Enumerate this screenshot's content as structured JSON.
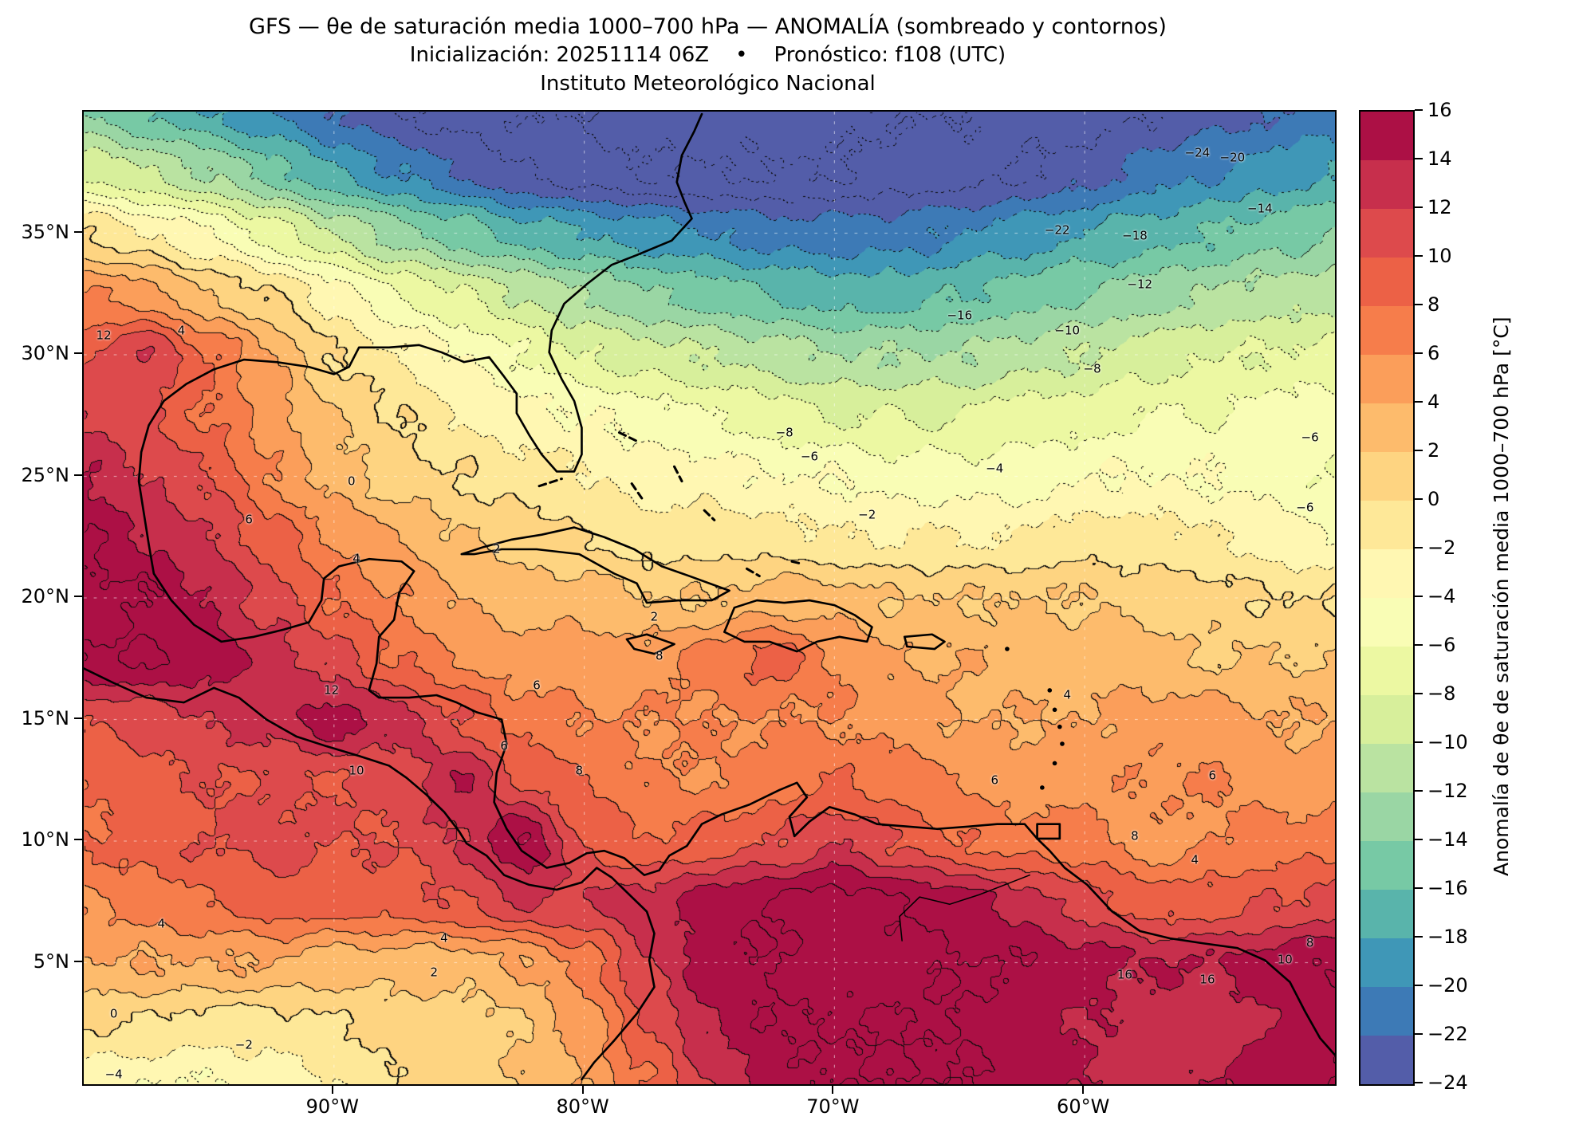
{
  "header": {
    "title_line1": "GFS — θe de saturación media 1000–700 hPa — ANOMALÍA (sombreado y contornos)",
    "title_line2": "Inicialización: 20251114 06Z    •    Pronóstico: f108 (UTC)",
    "title_line3": "Instituto Meteorológico Nacional"
  },
  "axes": {
    "lat_ticks": [
      {
        "label": "35°N",
        "value": 35
      },
      {
        "label": "30°N",
        "value": 30
      },
      {
        "label": "25°N",
        "value": 25
      },
      {
        "label": "20°N",
        "value": 20
      },
      {
        "label": "15°N",
        "value": 15
      },
      {
        "label": "10°N",
        "value": 10
      },
      {
        "label": "5°N",
        "value": 5
      }
    ],
    "lon_ticks": [
      {
        "label": "90°W",
        "value": -90
      },
      {
        "label": "80°W",
        "value": -80
      },
      {
        "label": "70°W",
        "value": -70
      },
      {
        "label": "60°W",
        "value": -60
      }
    ]
  },
  "colorbar": {
    "label": "Anomalía de θe de saturación media 1000–700 hPa [°C]",
    "ticks": [
      {
        "label": "16",
        "value": 16
      },
      {
        "label": "14",
        "value": 14
      },
      {
        "label": "12",
        "value": 12
      },
      {
        "label": "10",
        "value": 10
      },
      {
        "label": "8",
        "value": 8
      },
      {
        "label": "6",
        "value": 6
      },
      {
        "label": "4",
        "value": 4
      },
      {
        "label": "2",
        "value": 2
      },
      {
        "label": "0",
        "value": 0
      },
      {
        "label": "−2",
        "value": -2
      },
      {
        "label": "−4",
        "value": -4
      },
      {
        "label": "−6",
        "value": -6
      },
      {
        "label": "−8",
        "value": -8
      },
      {
        "label": "−10",
        "value": -10
      },
      {
        "label": "−12",
        "value": -12
      },
      {
        "label": "−14",
        "value": -14
      },
      {
        "label": "−16",
        "value": -16
      },
      {
        "label": "−18",
        "value": -18
      },
      {
        "label": "−20",
        "value": -20
      },
      {
        "label": "−22",
        "value": -22
      },
      {
        "label": "−24",
        "value": -24
      }
    ],
    "band_colors_low_to_high": [
      "#535da9",
      "#3d7ab6",
      "#3f97b7",
      "#59b4ab",
      "#77c9a5",
      "#9ad6a4",
      "#bae3a1",
      "#d7ef9b",
      "#ecf8a2",
      "#f9fdb5",
      "#fff7b2",
      "#fee898",
      "#fed481",
      "#fdbb6c",
      "#fb9e5a",
      "#f67d4b",
      "#ec6146",
      "#dd4a4c",
      "#c72f4c",
      "#ac1045"
    ],
    "line_color": "#000000"
  },
  "chart_data": {
    "type": "heatmap",
    "title": "GFS — θe de saturación media 1000–700 hPa — ANOMALÍA (sombreado y contornos)",
    "units": "°C",
    "level_min": -24,
    "level_max": 16,
    "level_step": 2,
    "lon_range": [
      -100,
      -50
    ],
    "lat_range": [
      0,
      40
    ],
    "grid_lon_start": -100,
    "grid_lon_step": 2.5,
    "grid_lat_start": 40,
    "grid_lat_step": -2.5,
    "values_rows_lat_desc": [
      [
        -14,
        -16,
        -18,
        -20,
        -22,
        -24,
        -25,
        -26,
        -26,
        -27,
        -27,
        -27,
        -27,
        -26,
        -26,
        -25,
        -25,
        -24,
        -23,
        -22,
        -21
      ],
      [
        -8,
        -10,
        -12,
        -15,
        -18,
        -20,
        -22,
        -24,
        -25,
        -26,
        -26,
        -26,
        -26,
        -25,
        -25,
        -24,
        -23,
        -21,
        -20,
        -19,
        -18
      ],
      [
        0,
        -2,
        -4,
        -7,
        -10,
        -13,
        -15,
        -17,
        -18,
        -19,
        -20,
        -21,
        -21,
        -21,
        -20,
        -19,
        -18,
        -17,
        -16,
        -15,
        -14
      ],
      [
        6,
        5,
        2,
        0,
        -3,
        -6,
        -8,
        -10,
        -12,
        -14,
        -15,
        -16,
        -17,
        -17,
        -16,
        -15,
        -14,
        -13,
        -12,
        -11,
        -11
      ],
      [
        10,
        12,
        8,
        4,
        0,
        -2,
        -4,
        -6,
        -8,
        -9,
        -10,
        -11,
        -12,
        -12,
        -12,
        -11,
        -10,
        -9,
        -8,
        -8,
        -7
      ],
      [
        12,
        10,
        8,
        5,
        2,
        0,
        -2,
        -3,
        -4,
        -5,
        -6,
        -7,
        -8,
        -8,
        -8,
        -7,
        -7,
        -6,
        -6,
        -5,
        -5
      ],
      [
        14,
        12,
        10,
        6,
        3,
        1,
        0,
        -1,
        -2,
        -3,
        -3,
        -4,
        -4,
        -5,
        -5,
        -5,
        -4,
        -4,
        -4,
        -5,
        -6
      ],
      [
        16,
        14,
        12,
        9,
        6,
        4,
        2,
        1,
        0,
        -1,
        -1,
        -1,
        -2,
        -2,
        -2,
        -2,
        -1,
        -1,
        -2,
        -3,
        -4
      ],
      [
        17,
        16,
        14,
        11,
        8,
        6,
        4,
        3,
        3,
        2,
        2,
        3,
        3,
        2,
        2,
        2,
        2,
        1,
        1,
        0,
        0
      ],
      [
        16,
        16,
        15,
        13,
        11,
        8,
        6,
        5,
        5,
        5,
        7,
        9,
        6,
        4,
        4,
        3,
        3,
        3,
        2,
        2,
        2
      ],
      [
        10,
        11,
        12,
        13,
        15,
        13,
        10,
        7,
        6,
        6,
        6,
        6,
        6,
        5,
        4,
        4,
        4,
        5,
        5,
        4,
        4
      ],
      [
        8,
        9,
        10,
        10,
        10,
        11,
        14,
        10,
        8,
        6,
        6,
        7,
        8,
        7,
        6,
        5,
        5,
        6,
        6,
        5,
        5
      ],
      [
        8,
        9,
        10,
        11,
        10,
        10,
        12,
        16,
        10,
        8,
        9,
        10,
        12,
        10,
        8,
        7,
        7,
        5,
        6,
        7,
        7
      ],
      [
        6,
        7,
        8,
        9,
        9,
        9,
        10,
        12,
        12,
        13,
        15,
        16,
        17,
        16,
        15,
        13,
        11,
        9,
        9,
        10,
        11
      ],
      [
        4,
        4,
        4,
        4,
        3,
        3,
        3,
        4,
        7,
        12,
        15,
        16,
        17,
        17,
        16,
        16,
        15,
        14,
        14,
        15,
        16
      ],
      [
        0,
        0,
        -1,
        -1,
        0,
        1,
        1,
        2,
        5,
        10,
        14,
        16,
        16,
        16,
        16,
        15,
        14,
        13,
        13,
        14,
        15
      ],
      [
        -3,
        -4,
        -4,
        -3,
        -2,
        0,
        1,
        2,
        4,
        8,
        12,
        15,
        16,
        16,
        16,
        15,
        14,
        13,
        14,
        15,
        16
      ]
    ],
    "contour_labels": [
      {
        "t": "12",
        "lon": -99.2,
        "lat": 30.8
      },
      {
        "t": "4",
        "lon": -96.1,
        "lat": 31.0
      },
      {
        "t": "0",
        "lon": -89.3,
        "lat": 24.8
      },
      {
        "t": "6",
        "lon": -93.4,
        "lat": 23.2
      },
      {
        "t": "4",
        "lon": -89.1,
        "lat": 21.6
      },
      {
        "t": "2",
        "lon": -83.5,
        "lat": 22.0
      },
      {
        "t": "−2",
        "lon": -68.7,
        "lat": 23.4
      },
      {
        "t": "−4",
        "lon": -63.6,
        "lat": 25.3
      },
      {
        "t": "−6",
        "lon": -71.0,
        "lat": 25.8
      },
      {
        "t": "−8",
        "lon": -72.0,
        "lat": 26.8
      },
      {
        "t": "−8",
        "lon": -59.7,
        "lat": 29.4
      },
      {
        "t": "−10",
        "lon": -60.7,
        "lat": 31.0
      },
      {
        "t": "−12",
        "lon": -57.8,
        "lat": 32.9
      },
      {
        "t": "−16",
        "lon": -65.0,
        "lat": 31.6
      },
      {
        "t": "−22",
        "lon": -61.1,
        "lat": 35.1
      },
      {
        "t": "−18",
        "lon": -58.0,
        "lat": 34.9
      },
      {
        "t": "−24",
        "lon": -55.5,
        "lat": 38.3
      },
      {
        "t": "−20",
        "lon": -54.1,
        "lat": 38.1
      },
      {
        "t": "−14",
        "lon": -53.0,
        "lat": 36.0
      },
      {
        "t": "−6",
        "lon": -51.2,
        "lat": 23.7
      },
      {
        "t": "−6",
        "lon": -51.0,
        "lat": 26.6
      },
      {
        "t": "12",
        "lon": -90.1,
        "lat": 16.2
      },
      {
        "t": "6",
        "lon": -81.9,
        "lat": 16.4
      },
      {
        "t": "10",
        "lon": -89.1,
        "lat": 12.9
      },
      {
        "t": "8",
        "lon": -80.2,
        "lat": 12.9
      },
      {
        "t": "6",
        "lon": -83.2,
        "lat": 13.9
      },
      {
        "t": "8",
        "lon": -77.0,
        "lat": 17.6
      },
      {
        "t": "2",
        "lon": -77.2,
        "lat": 19.2
      },
      {
        "t": "4",
        "lon": -60.7,
        "lat": 16.0
      },
      {
        "t": "6",
        "lon": -63.6,
        "lat": 12.5
      },
      {
        "t": "6",
        "lon": -54.9,
        "lat": 12.7
      },
      {
        "t": "8",
        "lon": -58.0,
        "lat": 10.2
      },
      {
        "t": "4",
        "lon": -55.6,
        "lat": 9.2
      },
      {
        "t": "16",
        "lon": -58.4,
        "lat": 4.5
      },
      {
        "t": "16",
        "lon": -55.1,
        "lat": 4.3
      },
      {
        "t": "10",
        "lon": -52.0,
        "lat": 5.1
      },
      {
        "t": "8",
        "lon": -51.0,
        "lat": 5.8
      },
      {
        "t": "4",
        "lon": -96.9,
        "lat": 6.6
      },
      {
        "t": "4",
        "lon": -85.6,
        "lat": 6.0
      },
      {
        "t": "2",
        "lon": -86.0,
        "lat": 4.6
      },
      {
        "t": "0",
        "lon": -98.8,
        "lat": 2.9
      },
      {
        "t": "−2",
        "lon": -93.6,
        "lat": 1.6
      },
      {
        "t": "−4",
        "lon": -98.8,
        "lat": 0.4
      }
    ]
  }
}
